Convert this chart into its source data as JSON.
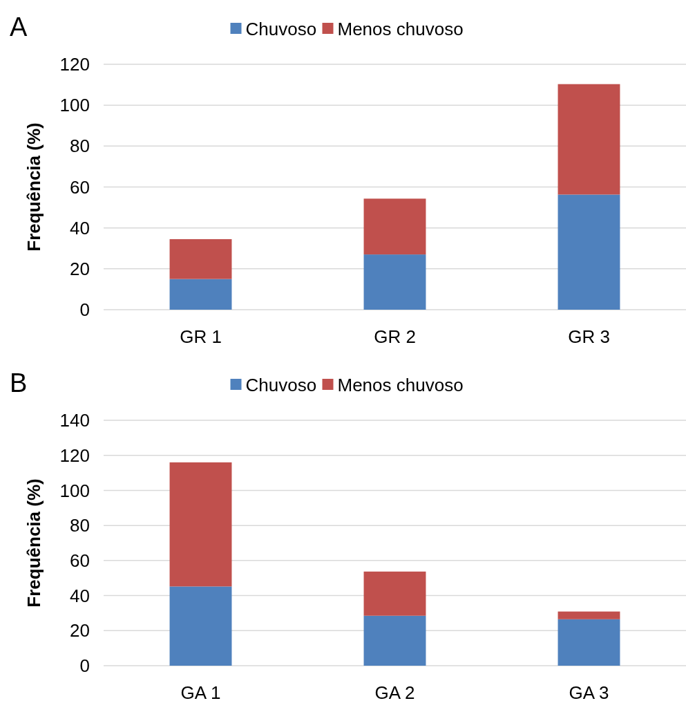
{
  "chart_data": [
    {
      "type": "bar",
      "title": "A",
      "ylabel": "Frequência (%)",
      "categories": [
        "GR 1",
        "GR 2",
        "GR 3"
      ],
      "stacked": true,
      "series": [
        {
          "name": "Chuvoso",
          "color": "#4f81bd",
          "values": [
            15,
            27,
            56.3
          ]
        },
        {
          "name": "Menos chuvoso",
          "color": "#c0504d",
          "values": [
            19.5,
            27.3,
            54
          ]
        }
      ],
      "ylim": [
        0,
        120
      ],
      "yticks": [
        0,
        20,
        40,
        60,
        80,
        100,
        120
      ],
      "grid": "y",
      "legend": "top"
    },
    {
      "type": "bar",
      "title": "B",
      "ylabel": "Frequência (%)",
      "categories": [
        "GA 1",
        "GA 2",
        "GA 3"
      ],
      "stacked": true,
      "series": [
        {
          "name": "Chuvoso",
          "color": "#4f81bd",
          "values": [
            45.2,
            28.5,
            26.5
          ]
        },
        {
          "name": "Menos chuvoso",
          "color": "#c0504d",
          "values": [
            70.8,
            25.2,
            4.4
          ]
        }
      ],
      "ylim": [
        0,
        140
      ],
      "yticks": [
        0,
        20,
        40,
        60,
        80,
        100,
        120,
        140
      ],
      "grid": "y",
      "legend": "top"
    }
  ]
}
